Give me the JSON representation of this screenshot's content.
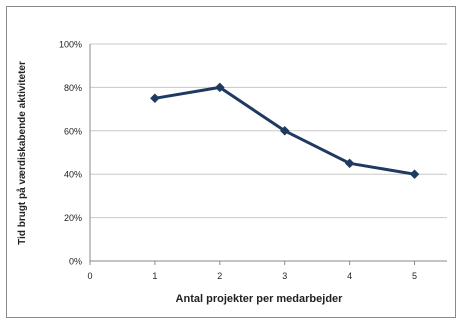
{
  "chart_data": {
    "type": "line",
    "xlabel": "Antal projekter per medarbejder",
    "ylabel": "Tid brugt på værdiskabende aktiviteter",
    "x_ticks": [
      "0",
      "1",
      "2",
      "3",
      "4",
      "5"
    ],
    "y_ticks": [
      "0%",
      "20%",
      "40%",
      "60%",
      "80%",
      "100%"
    ],
    "xlim": [
      0,
      5.5
    ],
    "ylim": [
      0,
      100
    ],
    "grid": "horizontal",
    "legend": "none",
    "series": [
      {
        "color": "#1f3a60",
        "marker": "diamond",
        "x": [
          1,
          2,
          3,
          4,
          5
        ],
        "y": [
          75,
          80,
          60,
          45,
          40
        ]
      }
    ]
  }
}
